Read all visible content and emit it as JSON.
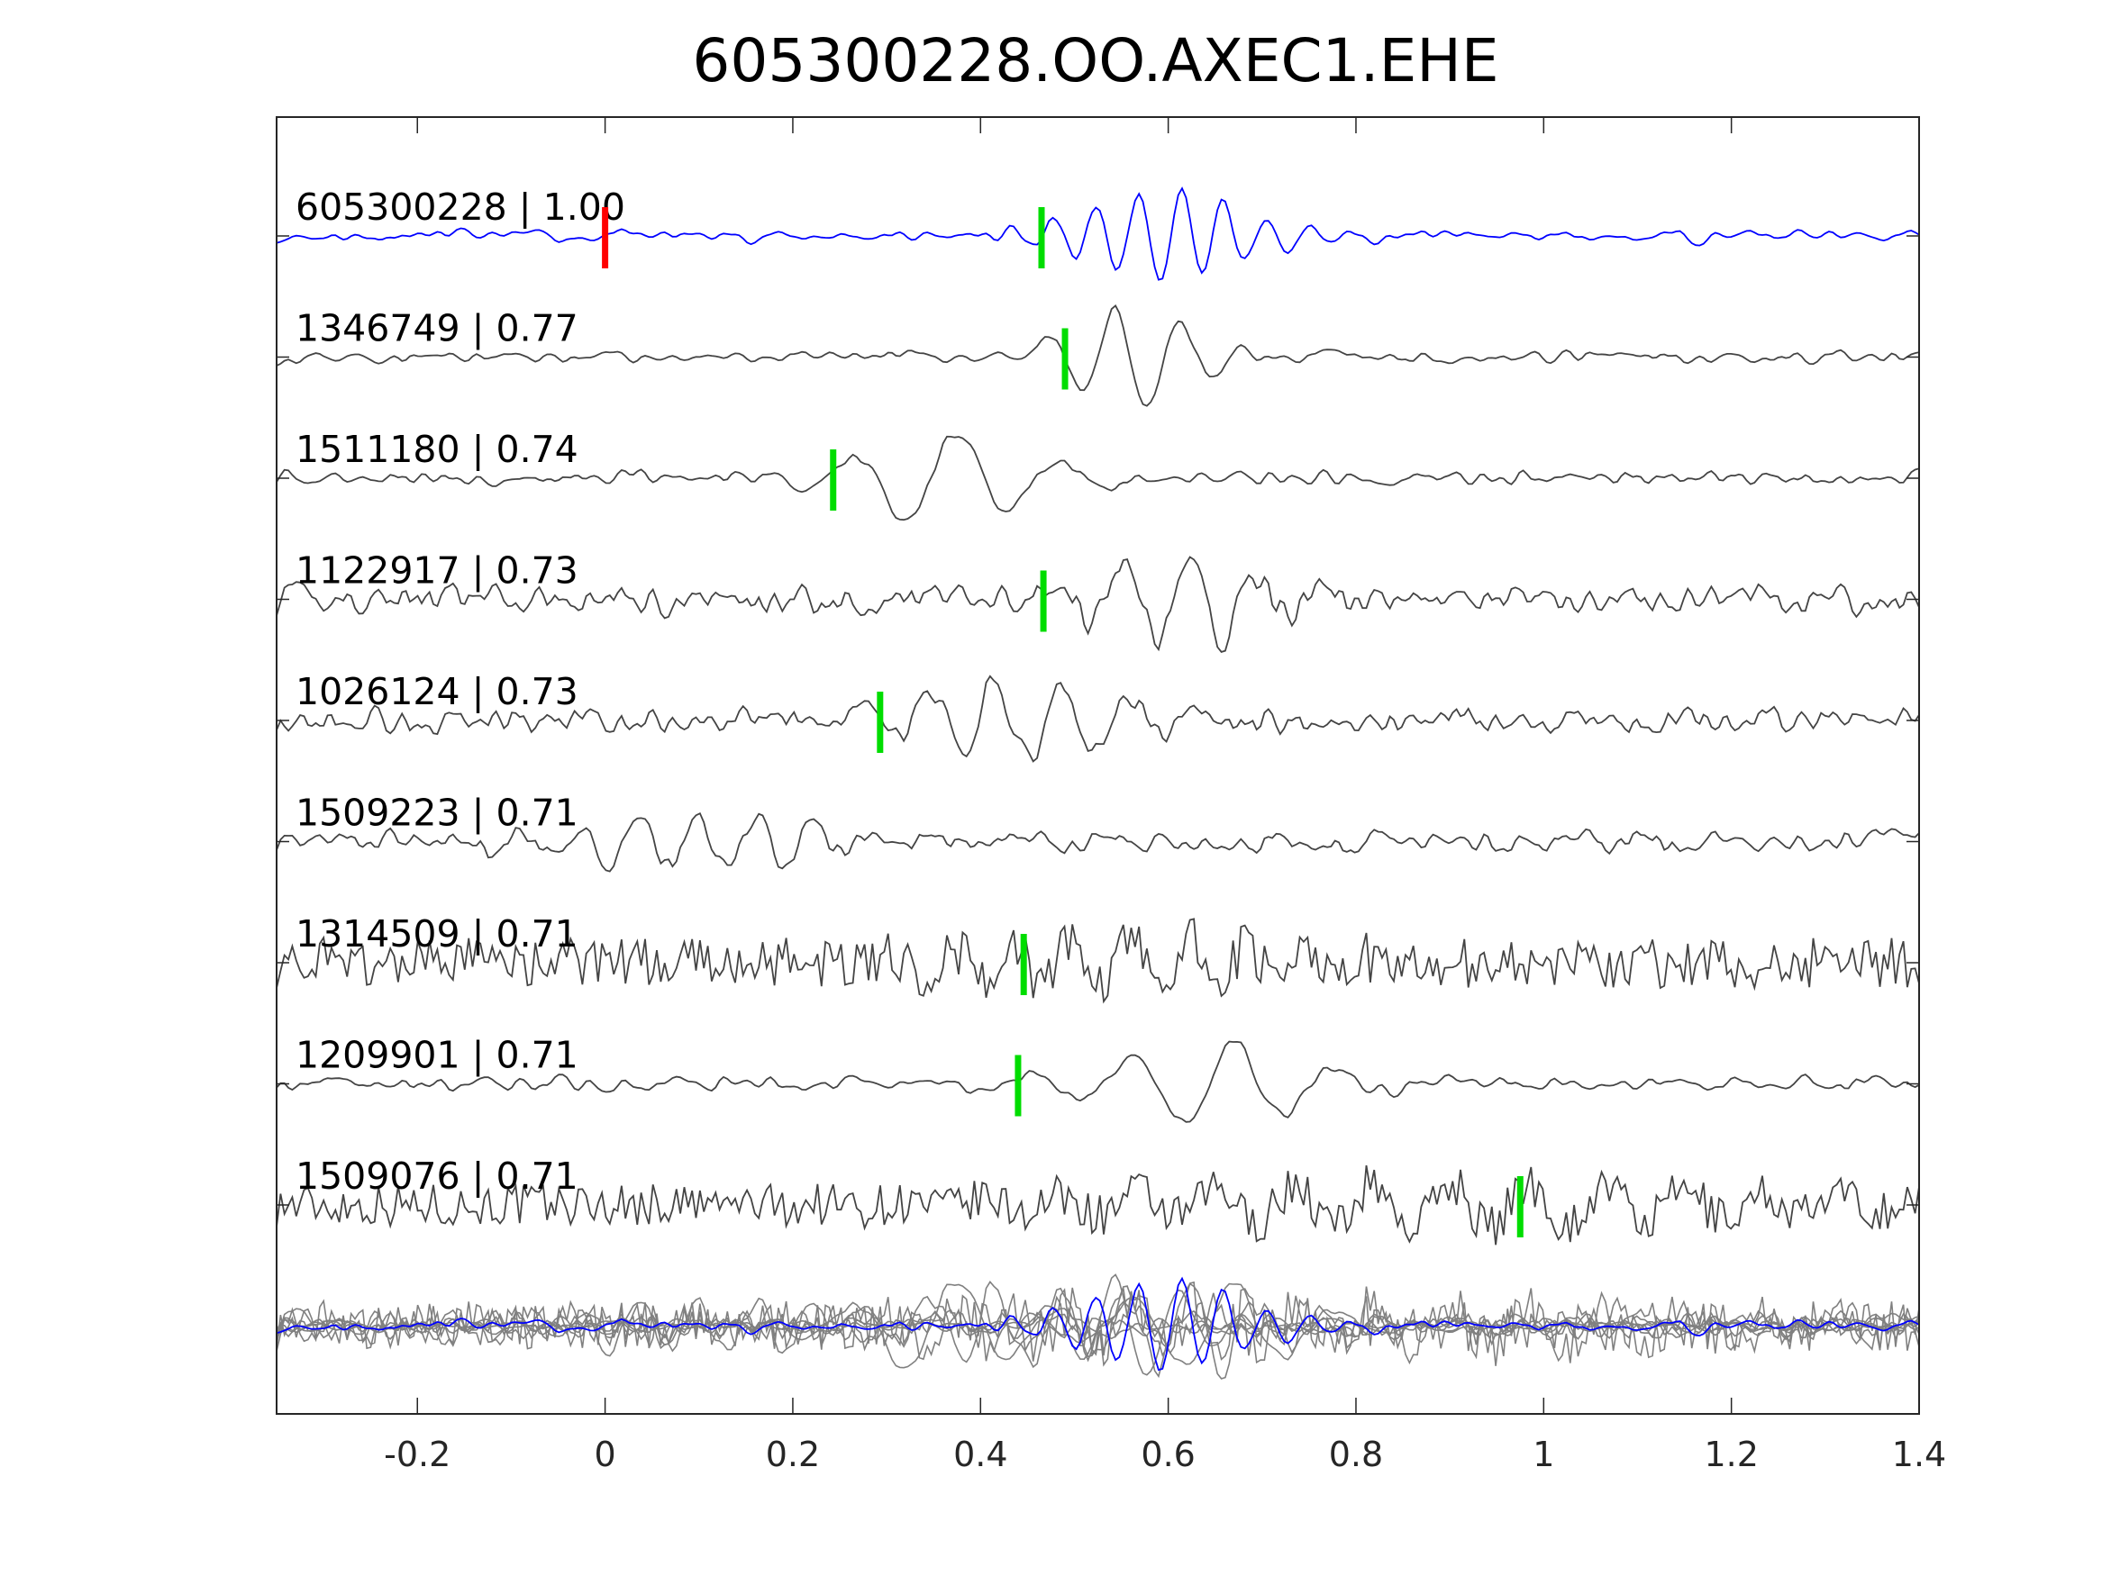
{
  "chart_data": {
    "type": "line",
    "title": "605300228.OO.AXEC1.EHE",
    "xlabel": "",
    "ylabel": "",
    "xlim": [
      -0.35,
      1.4
    ],
    "xticks": [
      -0.2,
      0,
      0.2,
      0.4,
      0.6,
      0.8,
      1,
      1.2,
      1.4
    ],
    "xtick_labels": [
      "-0.2",
      "0",
      "0.2",
      "0.4",
      "0.6",
      "0.8",
      "1",
      "1.2",
      "1.4"
    ],
    "grid": false,
    "colors": {
      "template": "#0000ff",
      "match": "#444444",
      "stack": "#808080",
      "pick_origin": "#ff0000",
      "pick": "#00dd00",
      "axis": "#262626"
    },
    "traces": [
      {
        "label": "605300228 | 1.00",
        "id": "605300228",
        "cc": 1.0,
        "pick": 0.465,
        "origin_pick": 0.0,
        "template": true
      },
      {
        "label": "1346749 | 0.77",
        "id": "1346749",
        "cc": 0.77,
        "pick": 0.49
      },
      {
        "label": "1511180 | 0.74",
        "id": "1511180",
        "cc": 0.74,
        "pick": 0.243
      },
      {
        "label": "1122917 | 0.73",
        "id": "1122917",
        "cc": 0.73,
        "pick": 0.467
      },
      {
        "label": "1026124 | 0.73",
        "id": "1026124",
        "cc": 0.73,
        "pick": 0.293
      },
      {
        "label": "1509223 | 0.71",
        "id": "1509223",
        "cc": 0.71,
        "pick": null
      },
      {
        "label": "1314509 | 0.71",
        "id": "1314509",
        "cc": 0.71,
        "pick": 0.446
      },
      {
        "label": "1209901 | 0.71",
        "id": "1209901",
        "cc": 0.71,
        "pick": 0.44
      },
      {
        "label": "1509076 | 0.71",
        "id": "1509076",
        "cc": 0.71,
        "pick": 0.975
      }
    ]
  }
}
